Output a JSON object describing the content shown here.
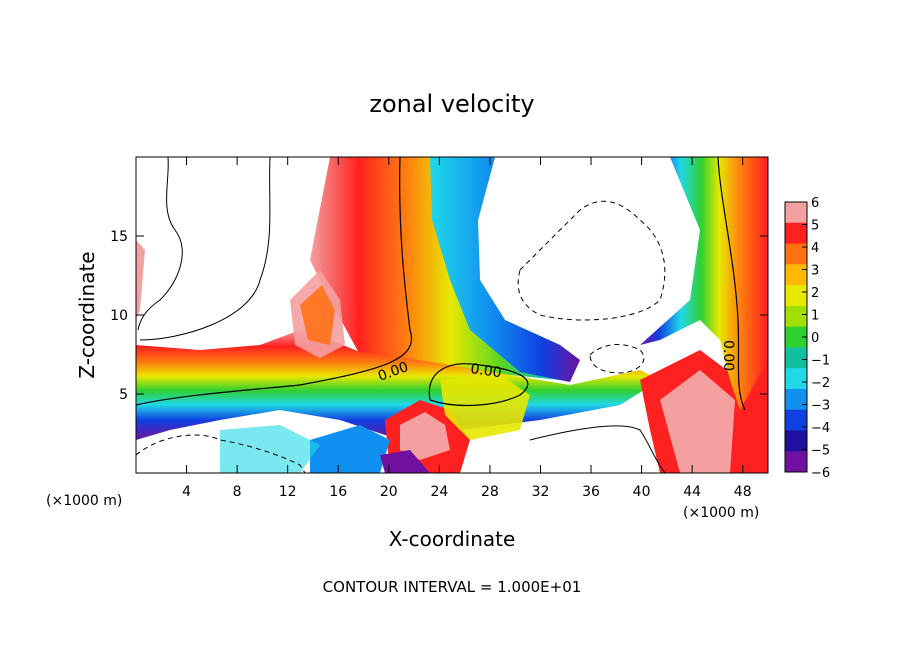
{
  "chart_data": {
    "type": "heatmap",
    "title": "zonal velocity",
    "xlabel": "X-coordinate",
    "ylabel": "Z-coordinate",
    "x_unit": "(×1000 m)",
    "x_unit_right": "(×1000 m)",
    "xlim": [
      0,
      50
    ],
    "ylim": [
      0,
      20
    ],
    "x_ticks": [
      4,
      8,
      12,
      16,
      20,
      24,
      28,
      32,
      36,
      40,
      44,
      48
    ],
    "y_ticks": [
      5,
      10,
      15
    ],
    "colorbar": {
      "levels": [
        6,
        5,
        4,
        3,
        2,
        1,
        0,
        -1,
        -2,
        -3,
        -4,
        -5,
        -6
      ],
      "colors": [
        "#f4a0a0",
        "#ff2020",
        "#ff7010",
        "#ffb800",
        "#e8e800",
        "#a0e000",
        "#30d030",
        "#10c0a0",
        "#20d8e8",
        "#1090f0",
        "#1040e0",
        "#2010a0",
        "#7010a0"
      ]
    },
    "contour_labels": [
      "0.00",
      "0.00",
      "0.00"
    ],
    "footer": "CONTOUR INTERVAL = 1.000E+01"
  }
}
